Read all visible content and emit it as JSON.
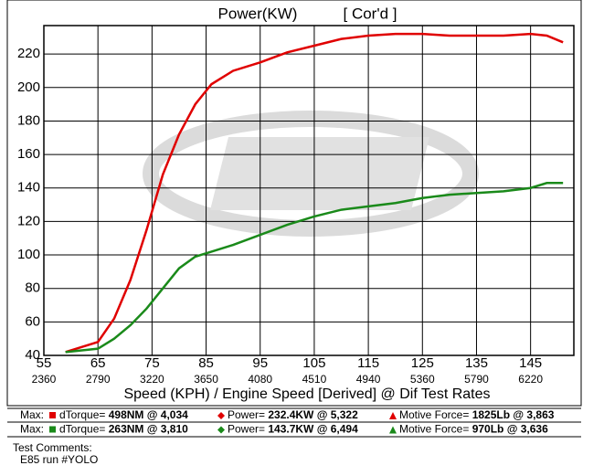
{
  "chart_data": {
    "type": "line",
    "title": "Power(KW)",
    "subtitle": "[ Cor'd ]",
    "x_label": "Speed (KPH) / Engine Speed [Derived] @ Dif Test Rates",
    "xlim": [
      55,
      153
    ],
    "xticks": [
      55,
      65,
      75,
      85,
      95,
      105,
      115,
      125,
      135,
      145
    ],
    "x_secondary_labels": [
      "2360",
      "2790",
      "3220",
      "3650",
      "4080",
      "4510",
      "4940",
      "5360",
      "5790",
      "6220"
    ],
    "ylim": [
      40,
      237
    ],
    "yticks": [
      40,
      60,
      80,
      100,
      120,
      140,
      160,
      180,
      200,
      220
    ],
    "grid": true,
    "x": [
      59,
      62,
      65,
      68,
      71,
      74,
      77,
      80,
      83,
      86,
      90,
      95,
      100,
      105,
      110,
      115,
      120,
      125,
      130,
      135,
      140,
      145,
      148,
      151
    ],
    "series": [
      {
        "color": "#e00000",
        "values": [
          42,
          45,
          48,
          62,
          85,
          115,
          148,
          172,
          190,
          202,
          210,
          215,
          221,
          225,
          229,
          231,
          232,
          232,
          231,
          231,
          231,
          232,
          231,
          227
        ]
      },
      {
        "color": "#1a8a1a",
        "values": [
          42,
          43,
          44,
          50,
          58,
          68,
          80,
          92,
          99,
          102,
          106,
          112,
          118,
          123,
          127,
          129,
          131,
          134,
          136,
          137,
          138,
          140,
          143,
          143
        ]
      }
    ]
  },
  "legend_rows": [
    {
      "label": "Max:",
      "items": [
        {
          "name": "dTorque= ",
          "value": "498NM @ 4,034",
          "color": "#e00000",
          "marker": "square"
        },
        {
          "name": "Power= ",
          "value": "232.4KW @ 5,322",
          "color": "#e00000",
          "marker": "diamond"
        },
        {
          "name": "Motive Force= ",
          "value": "1825Lb @ 3,863",
          "color": "#e00000",
          "marker": "triangle"
        }
      ]
    },
    {
      "label": "Max:",
      "items": [
        {
          "name": "dTorque= ",
          "value": "263NM @ 3,810",
          "color": "#1a8a1a",
          "marker": "square"
        },
        {
          "name": "Power= ",
          "value": "143.7KW @ 6,494",
          "color": "#1a8a1a",
          "marker": "diamond"
        },
        {
          "name": "Motive Force= ",
          "value": "970Lb @ 3,636",
          "color": "#1a8a1a",
          "marker": "triangle"
        }
      ]
    }
  ],
  "comments": {
    "heading": "Test Comments:",
    "text": "E85 run #YOLO"
  }
}
